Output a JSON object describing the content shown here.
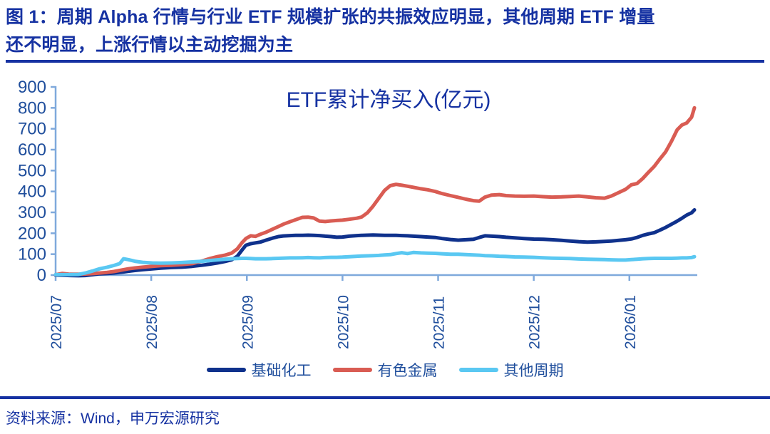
{
  "figure": {
    "title_line1": "图 1：周期 Alpha 行情与行业 ETF 规模扩张的共振效应明显，其他周期 ETF 增量",
    "title_line2": "还不明显，上涨行情以主动挖掘为主",
    "source": "资料来源：Wind，申万宏源研究"
  },
  "colors": {
    "title_navy": "#1632A2",
    "axis_label_blue": "#1F4E9C",
    "axis_line_blue": "#7FA9DC",
    "series_navy": "#0F318C",
    "series_red": "#D95C53",
    "series_sky": "#5AC8F2"
  },
  "chart_data": {
    "type": "line",
    "title": "ETF累计净买入(亿元)",
    "xlabel": "",
    "ylabel": "",
    "ylim": [
      0,
      900
    ],
    "y_ticks": [
      0,
      100,
      200,
      300,
      400,
      500,
      600,
      700,
      800,
      900
    ],
    "x_unit": "months since 2025/07/01",
    "x_range": [
      0,
      6.71
    ],
    "x_tick_positions": [
      0,
      1,
      2,
      3,
      4,
      5,
      6
    ],
    "x_tick_labels": [
      "2025/07",
      "2025/08",
      "2025/09",
      "2025/10",
      "2025/11",
      "2025/12",
      "2026/01"
    ],
    "grid": false,
    "legend_position": "bottom",
    "x": [
      0.0,
      0.07,
      0.15,
      0.24,
      0.31,
      0.39,
      0.46,
      0.54,
      0.61,
      0.67,
      0.71,
      0.76,
      0.83,
      0.91,
      1.01,
      1.1,
      1.21,
      1.32,
      1.43,
      1.53,
      1.62,
      1.69,
      1.77,
      1.84,
      1.9,
      1.95,
      1.99,
      2.04,
      2.09,
      2.14,
      2.2,
      2.27,
      2.33,
      2.38,
      2.45,
      2.51,
      2.58,
      2.64,
      2.7,
      2.76,
      2.82,
      2.88,
      2.94,
      3.0,
      3.07,
      3.15,
      3.2,
      3.26,
      3.32,
      3.38,
      3.44,
      3.5,
      3.56,
      3.62,
      3.68,
      3.74,
      3.82,
      3.89,
      3.97,
      4.04,
      4.13,
      4.21,
      4.29,
      4.37,
      4.43,
      4.49,
      4.56,
      4.64,
      4.71,
      4.8,
      4.9,
      5.0,
      5.1,
      5.19,
      5.29,
      5.38,
      5.47,
      5.56,
      5.65,
      5.74,
      5.81,
      5.89,
      5.96,
      6.02,
      6.08,
      6.14,
      6.2,
      6.26,
      6.32,
      6.38,
      6.44,
      6.5,
      6.55,
      6.6,
      6.65,
      6.68
    ],
    "series": [
      {
        "name": "基础化工",
        "color": "#0F318C",
        "values": [
          0,
          -1,
          -2,
          -3,
          -2,
          2,
          6,
          8,
          10,
          13,
          15,
          18,
          22,
          26,
          30,
          33,
          36,
          38,
          42,
          47,
          53,
          58,
          65,
          73,
          90,
          120,
          143,
          150,
          154,
          158,
          167,
          177,
          184,
          187,
          189,
          190,
          190,
          191,
          190,
          189,
          186,
          184,
          181,
          182,
          186,
          189,
          190,
          191,
          192,
          191,
          190,
          190,
          190,
          189,
          188,
          186,
          184,
          182,
          180,
          175,
          170,
          167,
          169,
          171,
          180,
          188,
          186,
          184,
          181,
          178,
          175,
          172,
          171,
          169,
          166,
          163,
          160,
          158,
          159,
          161,
          163,
          166,
          169,
          173,
          180,
          190,
          197,
          203,
          215,
          228,
          243,
          258,
          272,
          287,
          298,
          312
        ]
      },
      {
        "name": "有色金属",
        "color": "#D95C53",
        "values": [
          2,
          8,
          4,
          4,
          5,
          7,
          10,
          13,
          17,
          22,
          26,
          30,
          34,
          38,
          42,
          45,
          47,
          50,
          55,
          67,
          80,
          88,
          95,
          105,
          125,
          155,
          175,
          188,
          185,
          195,
          205,
          220,
          232,
          243,
          255,
          265,
          276,
          277,
          273,
          258,
          256,
          259,
          261,
          263,
          267,
          272,
          278,
          298,
          330,
          368,
          405,
          428,
          434,
          430,
          425,
          420,
          413,
          408,
          400,
          390,
          380,
          372,
          363,
          356,
          354,
          373,
          383,
          385,
          380,
          378,
          377,
          378,
          375,
          373,
          374,
          376,
          378,
          374,
          370,
          368,
          378,
          395,
          410,
          432,
          438,
          462,
          492,
          520,
          556,
          590,
          640,
          695,
          718,
          728,
          755,
          800
        ]
      },
      {
        "name": "其他周期",
        "color": "#5AC8F2",
        "values": [
          2,
          2,
          2,
          3,
          10,
          20,
          30,
          38,
          46,
          55,
          78,
          74,
          66,
          61,
          58,
          57,
          58,
          60,
          63,
          66,
          70,
          73,
          76,
          78,
          79,
          80,
          80,
          79,
          78,
          78,
          78,
          79,
          80,
          81,
          82,
          82,
          83,
          84,
          83,
          82,
          84,
          85,
          85,
          86,
          88,
          90,
          91,
          92,
          93,
          94,
          96,
          98,
          103,
          107,
          103,
          108,
          106,
          105,
          104,
          102,
          100,
          100,
          98,
          96,
          95,
          93,
          92,
          90,
          89,
          87,
          86,
          85,
          83,
          81,
          80,
          79,
          77,
          76,
          75,
          74,
          73,
          72,
          72,
          74,
          76,
          78,
          79,
          80,
          80,
          80,
          80,
          81,
          82,
          82,
          84,
          88
        ]
      }
    ]
  }
}
